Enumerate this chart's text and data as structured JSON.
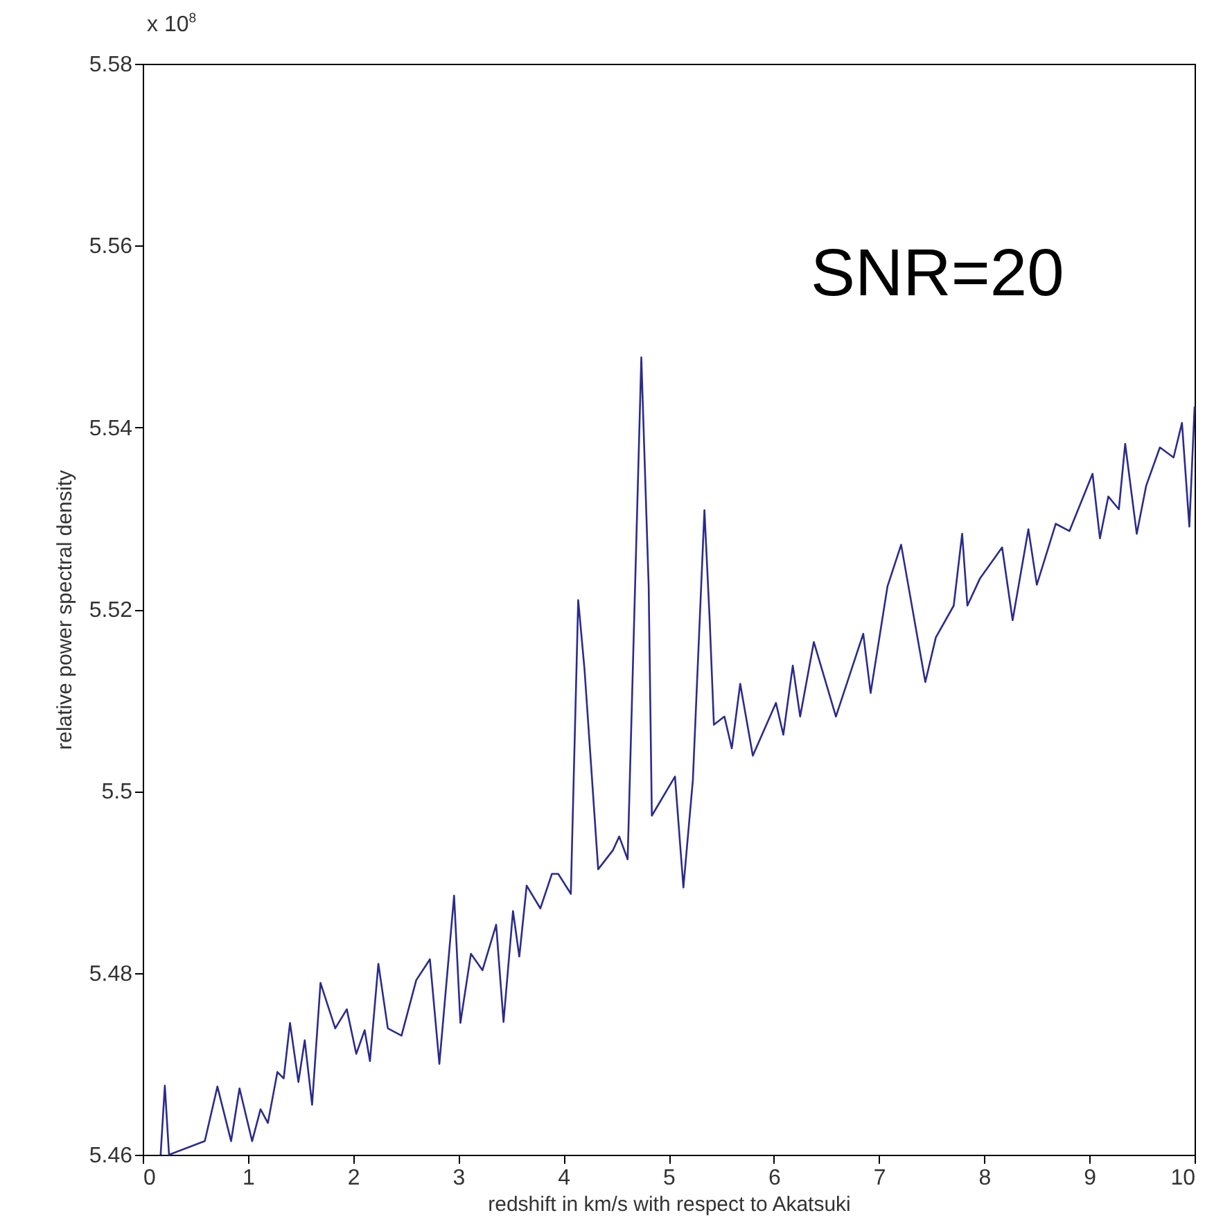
{
  "chart_data": {
    "type": "line",
    "xlabel": "redshift in km/s with respect to Akatsuki",
    "ylabel": "relative power spectral density",
    "annotations": [
      "x 10$^{8}$",
      "SNR=20"
    ],
    "x": [
      0.17,
      0.21,
      0.25,
      0.59,
      0.71,
      0.84,
      0.92,
      1.04,
      1.12,
      1.19,
      1.28,
      1.34,
      1.4,
      1.48,
      1.54,
      1.61,
      1.69,
      1.83,
      1.94,
      2.03,
      2.11,
      2.16,
      2.24,
      2.33,
      2.46,
      2.6,
      2.73,
      2.82,
      2.96,
      3.02,
      3.12,
      3.23,
      3.36,
      3.43,
      3.52,
      3.58,
      3.65,
      3.78,
      3.89,
      3.95,
      4.07,
      4.08,
      4.14,
      4.2,
      4.33,
      4.47,
      4.53,
      4.61,
      4.74,
      4.81,
      4.84,
      5.06,
      5.14,
      5.23,
      5.34,
      5.39,
      5.43,
      5.53,
      5.6,
      5.68,
      5.8,
      6.02,
      6.09,
      6.18,
      6.25,
      6.38,
      6.59,
      6.85,
      6.92,
      7.08,
      7.21,
      7.44,
      7.54,
      7.71,
      7.79,
      7.84,
      7.96,
      8.17,
      8.27,
      8.42,
      8.5,
      8.68,
      8.81,
      9.03,
      9.1,
      9.18,
      9.28,
      9.34,
      9.45,
      9.54,
      9.67,
      9.8,
      9.88,
      9.95,
      10.0
    ],
    "series": [
      {
        "color": "#2b2b8c",
        "values": [
          5.46,
          5.4676,
          5.46,
          5.4615,
          5.4675,
          5.4615,
          5.4673,
          5.4615,
          5.465,
          5.4635,
          5.4691,
          5.4684,
          5.4745,
          5.468,
          5.4726,
          5.4655,
          5.4789,
          5.4739,
          5.476,
          5.4711,
          5.4737,
          5.4703,
          5.481,
          5.4739,
          5.4731,
          5.4792,
          5.4815,
          5.47,
          5.4885,
          5.4745,
          5.4821,
          5.4803,
          5.4853,
          5.4746,
          5.4868,
          5.4818,
          5.4896,
          5.4871,
          5.4909,
          5.4909,
          5.4887,
          5.4935,
          5.521,
          5.5134,
          5.4914,
          5.4935,
          5.495,
          5.4925,
          5.5477,
          5.5225,
          5.4973,
          5.5016,
          5.4894,
          5.5012,
          5.5309,
          5.5188,
          5.5073,
          5.5082,
          5.5047,
          5.5118,
          5.5039,
          5.5097,
          5.5062,
          5.5138,
          5.5082,
          5.5164,
          5.5082,
          5.5173,
          5.5108,
          5.5225,
          5.5271,
          5.512,
          5.5169,
          5.5204,
          5.5283,
          5.5204,
          5.5234,
          5.5268,
          5.5188,
          5.5288,
          5.5227,
          5.5294,
          5.5286,
          5.5349,
          5.5278,
          5.5324,
          5.531,
          5.5382,
          5.5283,
          5.5336,
          5.5378,
          5.5367,
          5.5405,
          5.5291,
          5.5423
        ]
      }
    ],
    "xlim": [
      0,
      10
    ],
    "xticks": [
      0,
      1,
      2,
      3,
      4,
      5,
      6,
      7,
      8,
      9,
      10
    ],
    "ylim": [
      5.46,
      5.58
    ],
    "yticks": [
      5.46,
      5.48,
      5.5,
      5.52,
      5.54,
      5.56,
      5.58
    ],
    "grid": false,
    "legend": false,
    "marker": "none",
    "line_style": "solid"
  }
}
